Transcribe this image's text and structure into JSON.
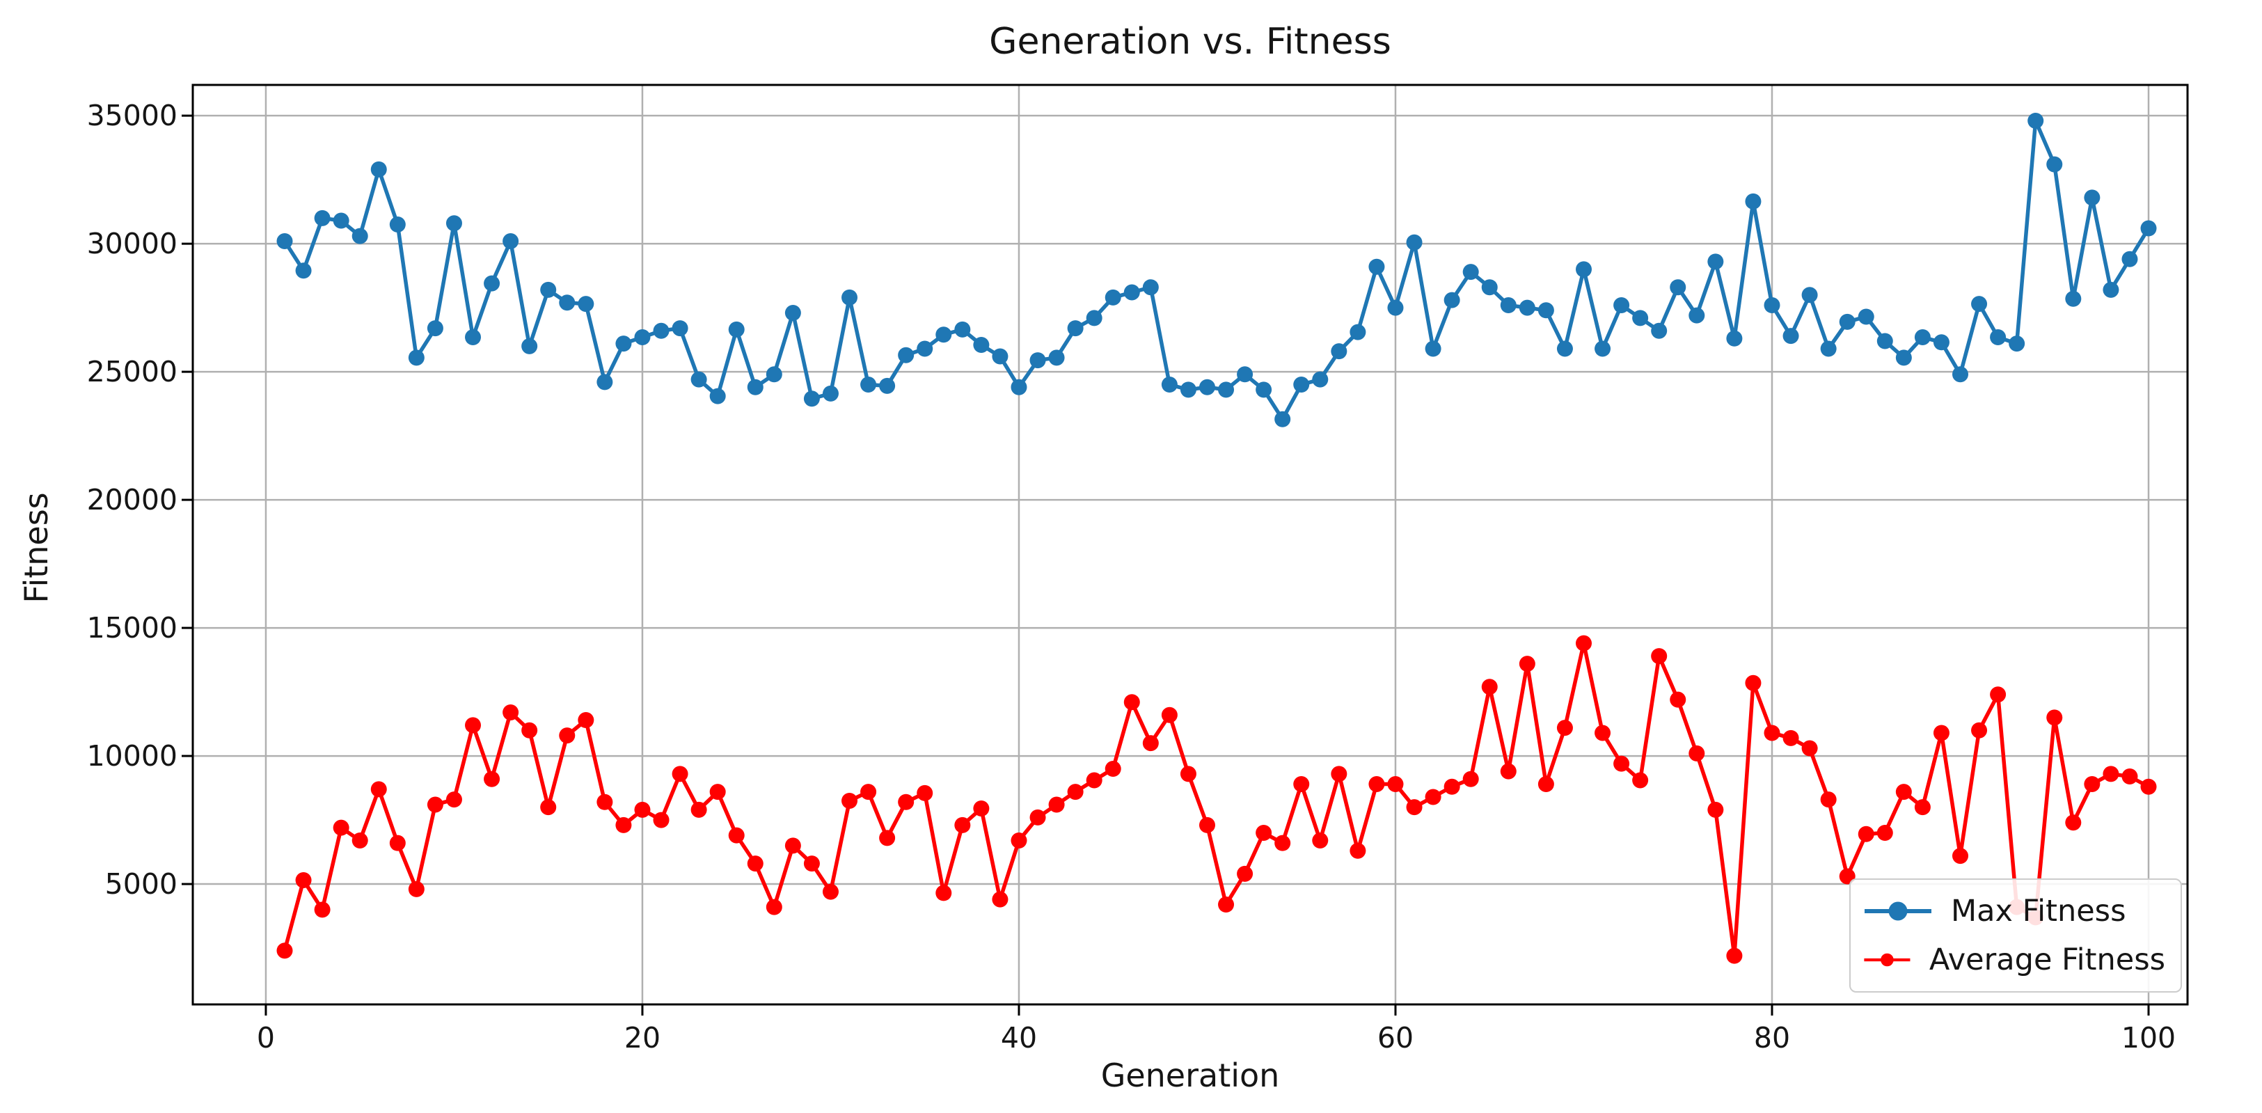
{
  "figure": {
    "title": "Generation vs. Fitness",
    "xlabel": "Generation",
    "ylabel": "Fitness"
  },
  "legend": {
    "position": "lower right",
    "items": [
      {
        "label": "Max Fitness",
        "color": "#1f77b4"
      },
      {
        "label": "Average Fitness",
        "color": "#ff0000"
      }
    ]
  },
  "chart_data": {
    "type": "line",
    "title": "Generation vs. Fitness",
    "xlabel": "Generation",
    "ylabel": "Fitness",
    "grid": true,
    "grid_color": "#b0b0b0",
    "spine_color": "#000000",
    "tick_label_color": "#151515",
    "x_ticks": [
      0,
      20,
      40,
      60,
      80,
      100
    ],
    "x_tick_labels": [
      "0",
      "20",
      "40",
      "60",
      "80",
      "100"
    ],
    "y_ticks": [
      5000,
      10000,
      15000,
      20000,
      25000,
      30000,
      35000
    ],
    "y_tick_labels": [
      "5000",
      "10000",
      "15000",
      "20000",
      "25000",
      "30000",
      "35000"
    ],
    "xlim": [
      -3.88,
      102.07
    ],
    "ylim": [
      300,
      36200
    ],
    "legend_position": "lower right",
    "marker": "o",
    "marker_radius": 11.5,
    "line_width": 5.5,
    "layout": {
      "plot_left": 277,
      "plot_top": 122,
      "plot_right": 3143,
      "plot_bottom": 1443,
      "tick_length": 16,
      "x_tick_label_y_offset": 62,
      "y_tick_label_x_offset": 22,
      "tick_font_size": 41
    },
    "generations": [
      1,
      2,
      3,
      4,
      5,
      6,
      7,
      8,
      9,
      10,
      11,
      12,
      13,
      14,
      15,
      16,
      17,
      18,
      19,
      20,
      21,
      22,
      23,
      24,
      25,
      26,
      27,
      28,
      29,
      30,
      31,
      32,
      33,
      34,
      35,
      36,
      37,
      38,
      39,
      40,
      41,
      42,
      43,
      44,
      45,
      46,
      47,
      48,
      49,
      50,
      51,
      52,
      53,
      54,
      55,
      56,
      57,
      58,
      59,
      60,
      61,
      62,
      63,
      64,
      65,
      66,
      67,
      68,
      69,
      70,
      71,
      72,
      73,
      74,
      75,
      76,
      77,
      78,
      79,
      80,
      81,
      82,
      83,
      84,
      85,
      86,
      87,
      88,
      89,
      90,
      91,
      92,
      93,
      94,
      95,
      96,
      97,
      98,
      99,
      100
    ],
    "series": [
      {
        "name": "Max Fitness",
        "color": "#1f77b4",
        "values": [
          30100,
          28950,
          31000,
          30900,
          30300,
          32900,
          30750,
          25550,
          26700,
          30800,
          26350,
          28450,
          30100,
          26000,
          28200,
          27700,
          27650,
          24600,
          26100,
          26350,
          26600,
          26700,
          24700,
          24050,
          26650,
          24400,
          24900,
          27300,
          23950,
          24150,
          27900,
          24500,
          24450,
          25650,
          25900,
          26450,
          26650,
          26050,
          25600,
          24400,
          25450,
          25550,
          26700,
          27100,
          27900,
          28100,
          28300,
          24500,
          24300,
          24400,
          24300,
          24900,
          24300,
          23150,
          24500,
          24700,
          25800,
          26550,
          29100,
          27500,
          30050,
          25900,
          27800,
          28900,
          28300,
          27600,
          27500,
          27400,
          25900,
          29000,
          25900,
          27600,
          27100,
          26600,
          28300,
          27200,
          29300,
          26300,
          31650,
          27600,
          26400,
          28000,
          25900,
          26950,
          27150,
          26200,
          25550,
          26350,
          26150,
          24900,
          27650,
          26350,
          26100,
          34800,
          33100,
          27850,
          31800,
          28200,
          29400,
          30600
        ]
      },
      {
        "name": "Average Fitness",
        "color": "#ff0000",
        "values": [
          2400,
          5150,
          4000,
          7200,
          6700,
          8700,
          6600,
          4800,
          8100,
          8300,
          11200,
          9100,
          11700,
          11000,
          8000,
          10800,
          11400,
          8200,
          7300,
          7900,
          7500,
          9300,
          7900,
          8600,
          6900,
          5800,
          4100,
          6500,
          5800,
          4700,
          8250,
          8600,
          6800,
          8200,
          8550,
          4650,
          7300,
          7950,
          4400,
          6700,
          7600,
          8100,
          8600,
          9050,
          9500,
          12100,
          10500,
          11600,
          9300,
          7300,
          4200,
          5400,
          7000,
          6600,
          8900,
          6700,
          9300,
          6300,
          8900,
          8900,
          8000,
          8400,
          8800,
          9100,
          12700,
          9400,
          13600,
          8900,
          11100,
          14400,
          10900,
          9700,
          9050,
          13900,
          12200,
          10100,
          7900,
          2200,
          12850,
          10900,
          10700,
          10300,
          8300,
          5300,
          6950,
          7000,
          8600,
          8000,
          10900,
          6100,
          11000,
          12400,
          4100,
          3700,
          11500,
          7400,
          8900,
          9300,
          9200,
          8800
        ]
      }
    ]
  }
}
